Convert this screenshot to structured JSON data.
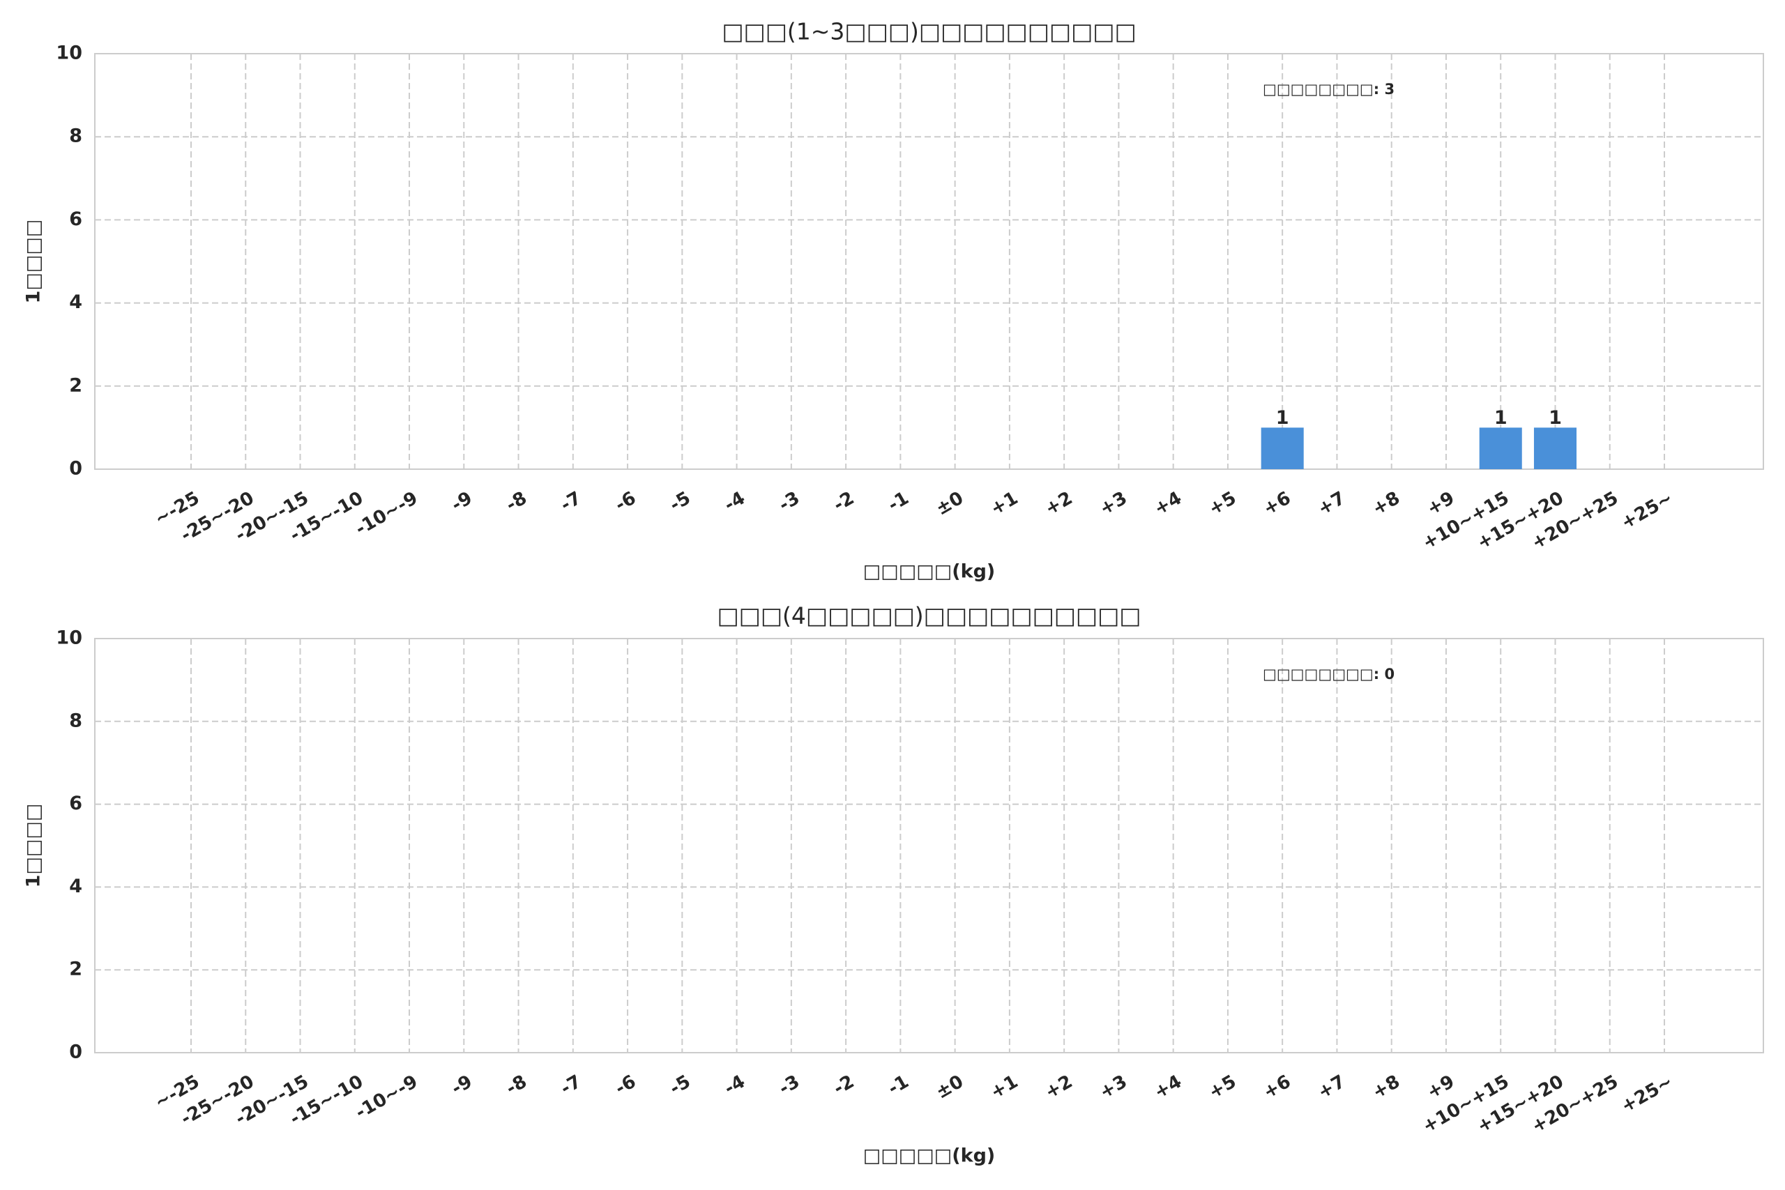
{
  "chart_data": [
    {
      "type": "bar",
      "title": "□□□(1~3□□□)□□□□□□□□□□",
      "xlabel": "□□□□□(kg)",
      "ylabel": "1□□□□",
      "annotation": "□□□□□□□□: 3",
      "categories": [
        "~-25",
        "-25~-20",
        "-20~-15",
        "-15~-10",
        "-10~-9",
        "-9",
        "-8",
        "-7",
        "-6",
        "-5",
        "-4",
        "-3",
        "-2",
        "-1",
        "±0",
        "+1",
        "+2",
        "+3",
        "+4",
        "+5",
        "+6",
        "+7",
        "+8",
        "+9",
        "+10~+15",
        "+15~+20",
        "+20~+25",
        "+25~"
      ],
      "values": [
        0,
        0,
        0,
        0,
        0,
        0,
        0,
        0,
        0,
        0,
        0,
        0,
        0,
        0,
        0,
        0,
        0,
        0,
        0,
        0,
        1,
        0,
        0,
        0,
        1,
        1,
        0,
        0
      ],
      "color": "#4a90d9",
      "ylim": [
        0,
        10
      ],
      "yticks": [
        0,
        2,
        4,
        6,
        8,
        10
      ],
      "grid": true
    },
    {
      "type": "bar",
      "title": "□□□(4□□□□□)□□□□□□□□□□",
      "xlabel": "□□□□□(kg)",
      "ylabel": "1□□□□",
      "annotation": "□□□□□□□□: 0",
      "categories": [
        "~-25",
        "-25~-20",
        "-20~-15",
        "-15~-10",
        "-10~-9",
        "-9",
        "-8",
        "-7",
        "-6",
        "-5",
        "-4",
        "-3",
        "-2",
        "-1",
        "±0",
        "+1",
        "+2",
        "+3",
        "+4",
        "+5",
        "+6",
        "+7",
        "+8",
        "+9",
        "+10~+15",
        "+15~+20",
        "+20~+25",
        "+25~"
      ],
      "values": [
        0,
        0,
        0,
        0,
        0,
        0,
        0,
        0,
        0,
        0,
        0,
        0,
        0,
        0,
        0,
        0,
        0,
        0,
        0,
        0,
        0,
        0,
        0,
        0,
        0,
        0,
        0,
        0
      ],
      "color": "#4a90d9",
      "ylim": [
        0,
        10
      ],
      "yticks": [
        0,
        2,
        4,
        6,
        8,
        10
      ],
      "grid": true
    }
  ]
}
